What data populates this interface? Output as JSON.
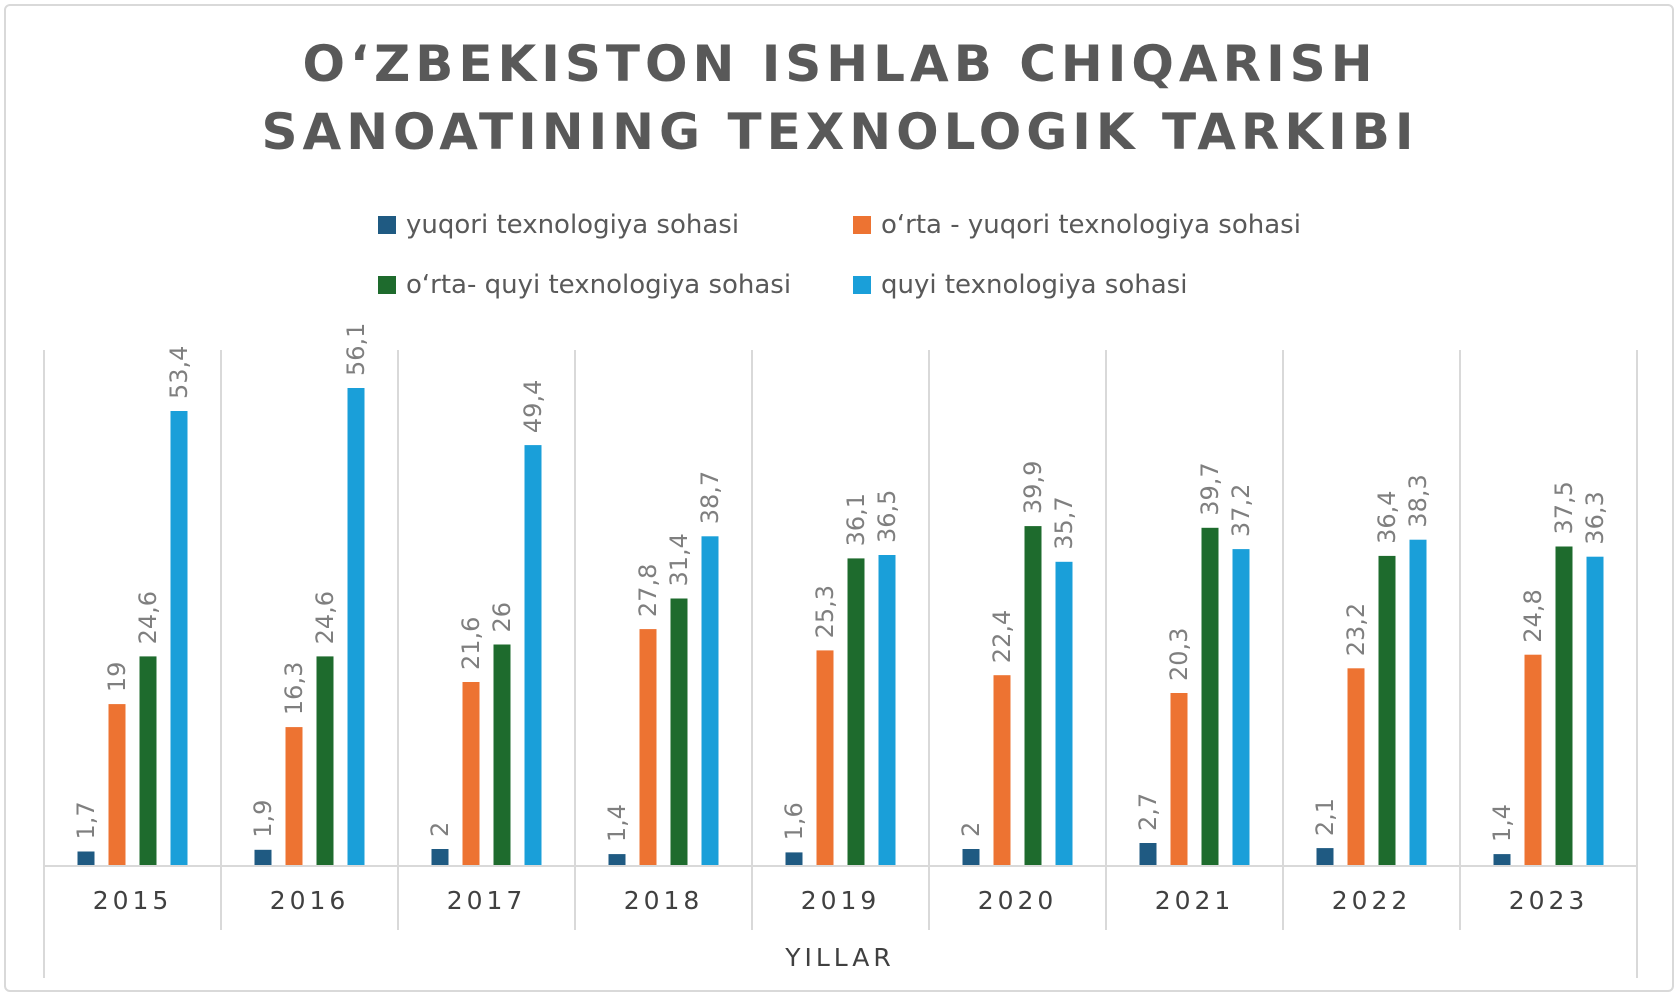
{
  "chart_data": {
    "type": "bar",
    "title_lines": [
      "O‘ZBEKISTON ISHLAB CHIQARISH",
      "SANOATINING TEXNOLOGIK TARKIBI"
    ],
    "xlabel": "YILLAR",
    "ylabel": "",
    "categories": [
      "2015",
      "2016",
      "2017",
      "2018",
      "2019",
      "2020",
      "2021",
      "2022",
      "2023"
    ],
    "series": [
      {
        "name": "yuqori texnologiya sohasi",
        "color": "#1f5a82",
        "values": [
          1.7,
          1.9,
          2,
          1.4,
          1.6,
          2,
          2.7,
          2.1,
          1.4
        ],
        "labels": [
          "1,7",
          "1,9",
          "2",
          "1,4",
          "1,6",
          "2",
          "2,7",
          "2,1",
          "1,4"
        ]
      },
      {
        "name": "o‘rta - yuqori texnologiya sohasi",
        "color": "#ed7332",
        "values": [
          19,
          16.3,
          21.6,
          27.8,
          25.3,
          22.4,
          20.3,
          23.2,
          24.8
        ],
        "labels": [
          "19",
          "16,3",
          "21,6",
          "27,8",
          "25,3",
          "22,4",
          "20,3",
          "23,2",
          "24,8"
        ]
      },
      {
        "name": "o‘rta- quyi texnologiya sohasi",
        "color": "#1e6b2d",
        "values": [
          24.6,
          24.6,
          26,
          31.4,
          36.1,
          39.9,
          39.7,
          36.4,
          37.5
        ],
        "labels": [
          "24,6",
          "24,6",
          "26",
          "31,4",
          "36,1",
          "39,9",
          "39,7",
          "36,4",
          "37,5"
        ]
      },
      {
        "name": "quyi texnologiya sohasi",
        "color": "#1a9fd9",
        "values": [
          53.4,
          56.1,
          49.4,
          38.7,
          36.5,
          35.7,
          37.2,
          38.3,
          36.3
        ],
        "labels": [
          "53,4",
          "56,1",
          "49,4",
          "38,7",
          "36,5",
          "35,7",
          "37,2",
          "38,3",
          "36,3"
        ]
      }
    ],
    "legend_position": "top",
    "grid": false,
    "category_separators": true
  }
}
